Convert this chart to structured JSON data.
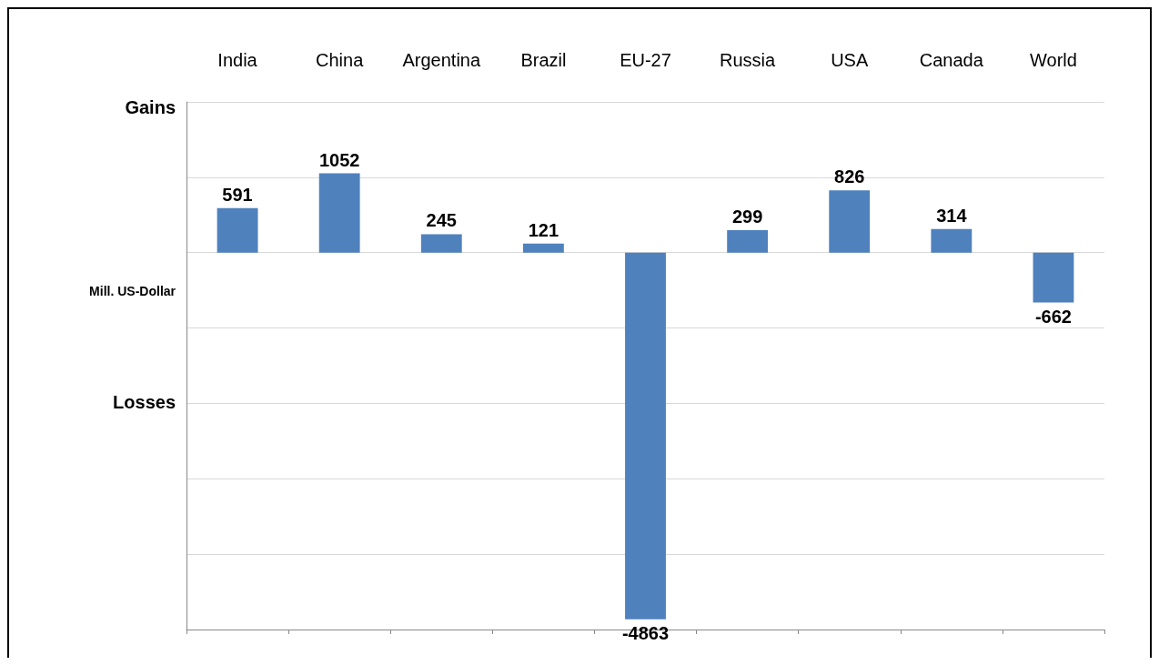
{
  "chart_data": {
    "type": "bar",
    "categories": [
      "India",
      "China",
      "Argentina",
      "Brazil",
      "EU-27",
      "Russia",
      "USA",
      "Canada",
      "World"
    ],
    "values": [
      591,
      1052,
      245,
      121,
      -4863,
      299,
      826,
      314,
      -662
    ],
    "color": "#4f81bd",
    "ylabel": "Mill. US-Dollar",
    "annotations": [
      "Gains",
      "Losses"
    ],
    "ylim": [
      -5000,
      2000
    ],
    "yticks": [
      {
        "value": -5000,
        "label": null
      },
      {
        "value": -4000,
        "label": null
      },
      {
        "value": -3000,
        "label": null
      },
      {
        "value": -2000,
        "label": null
      },
      {
        "value": -1000,
        "label": null
      },
      {
        "value": 0,
        "label": null
      },
      {
        "value": 1000,
        "label": null
      },
      {
        "value": 2000,
        "label": null
      }
    ],
    "grid": "y",
    "tick_labels": "x",
    "data_labels": true
  }
}
